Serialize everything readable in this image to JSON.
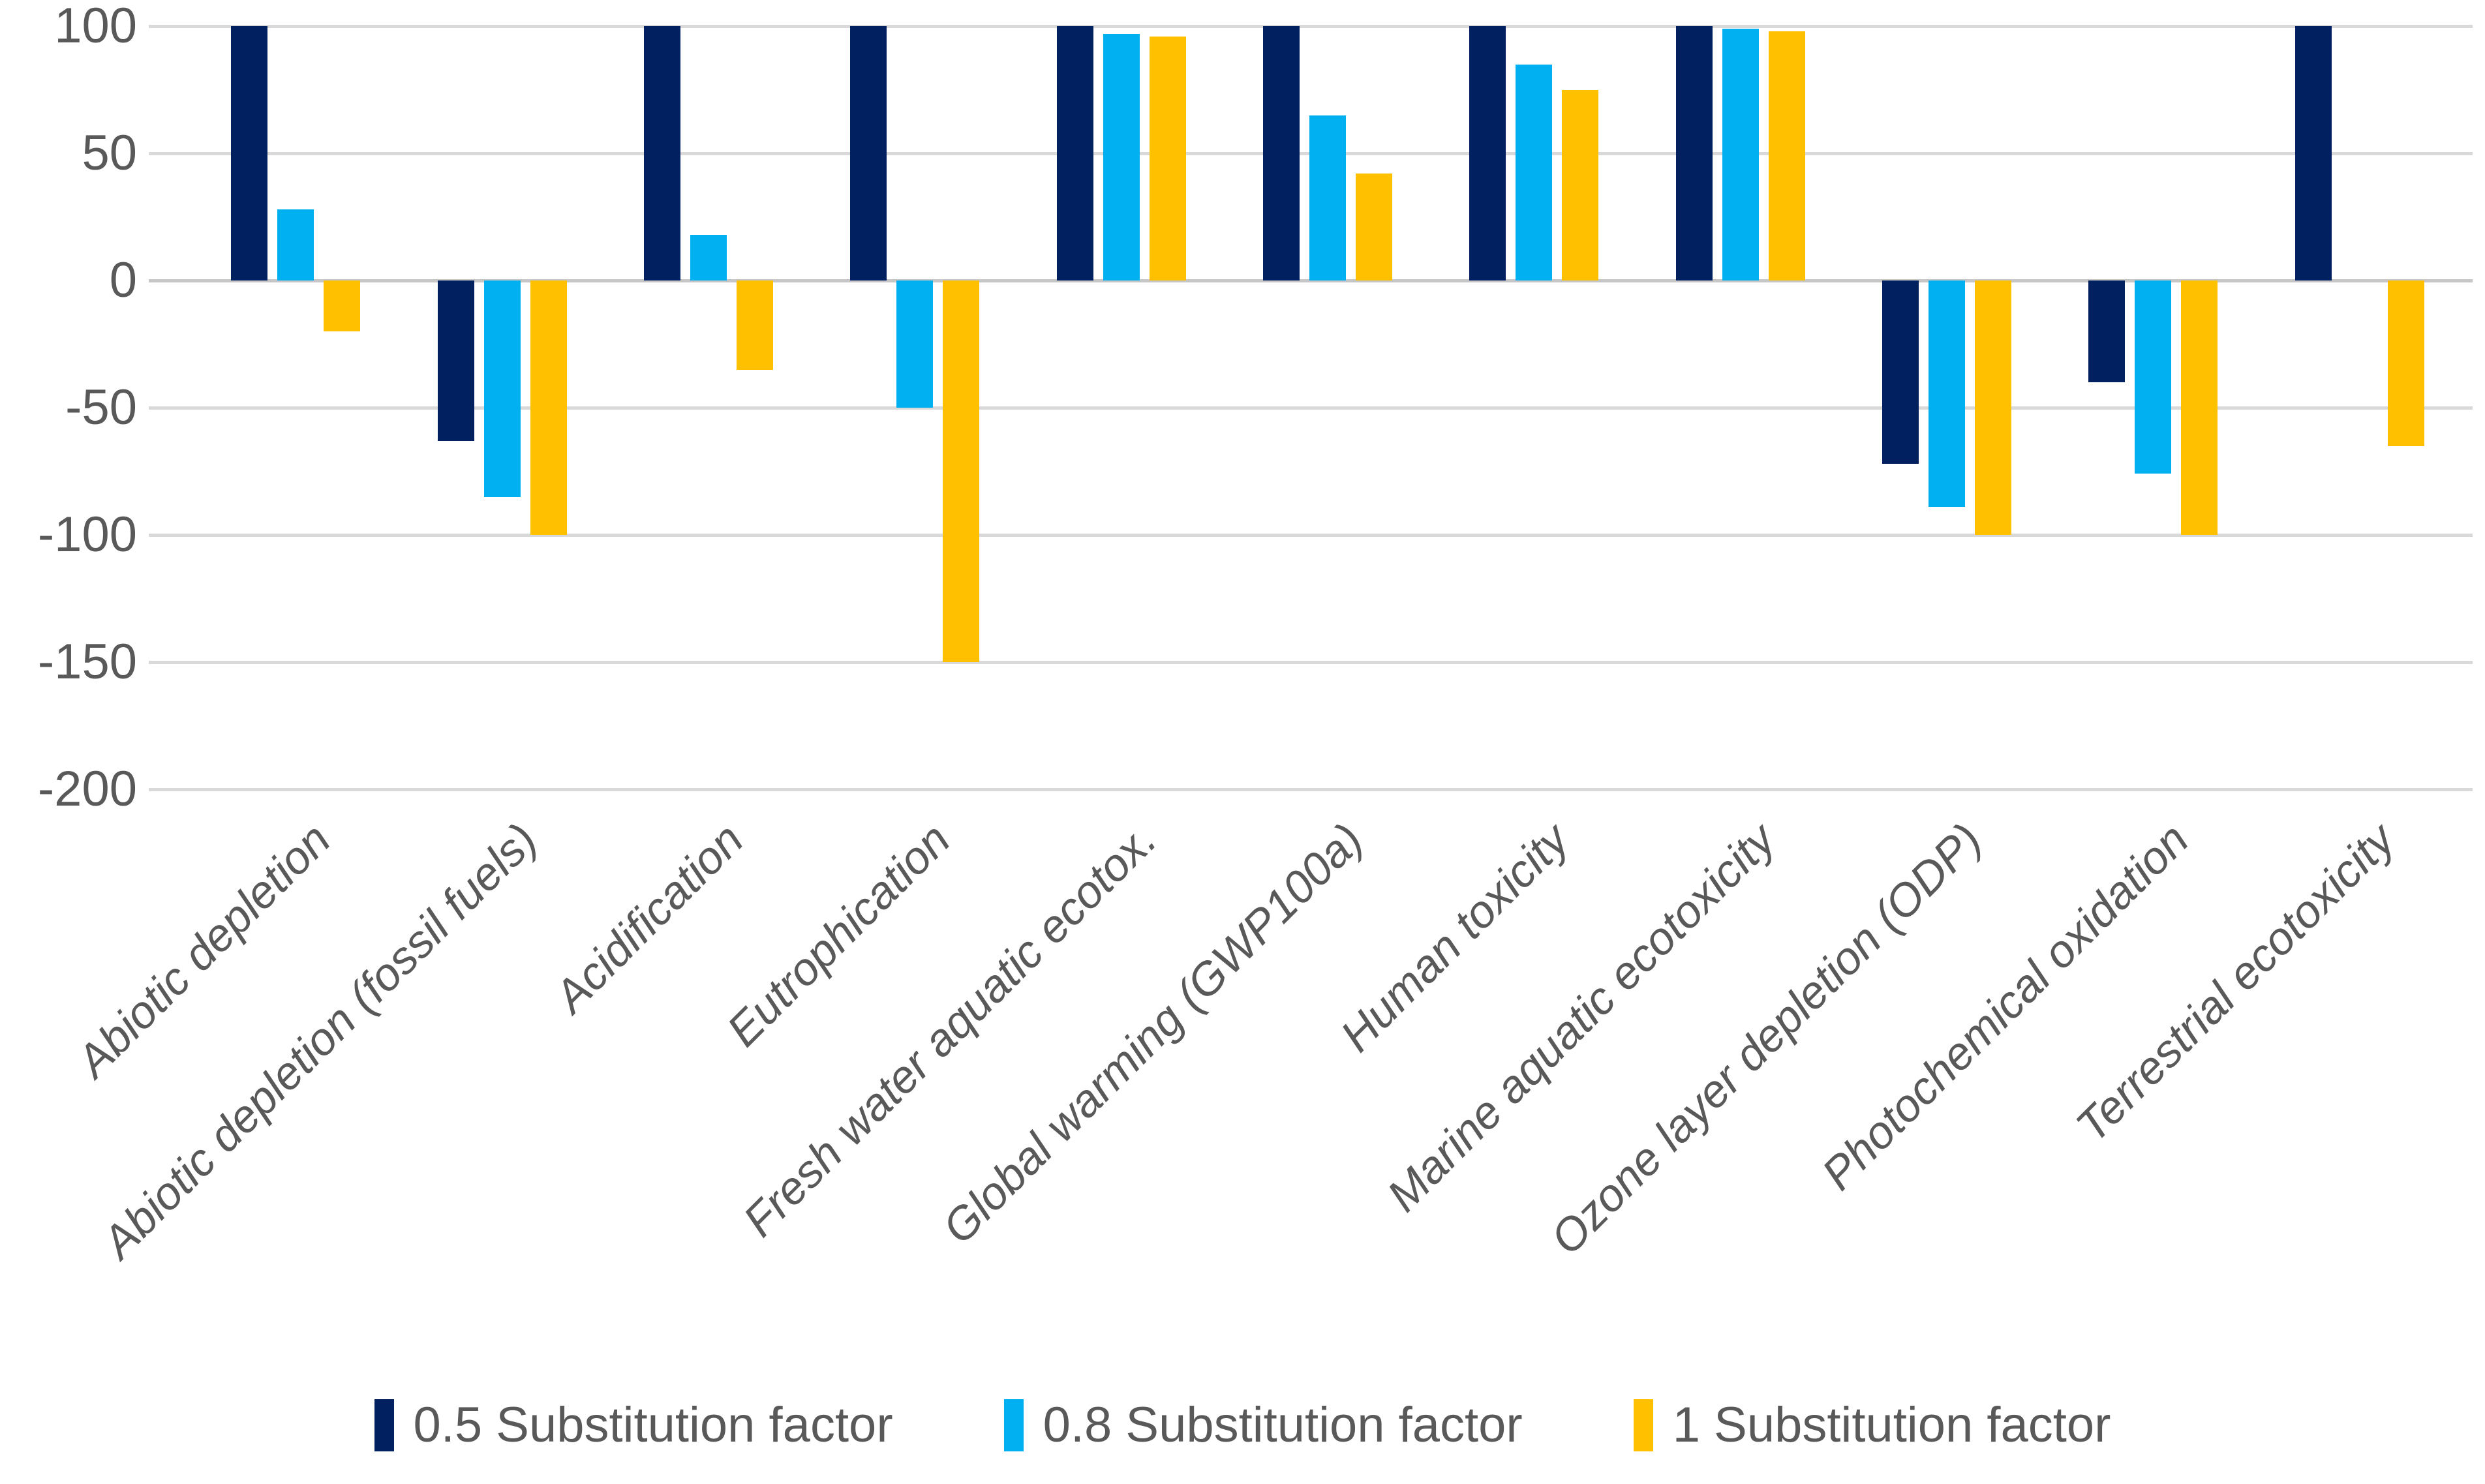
{
  "chart_data": {
    "type": "bar",
    "title": "",
    "xlabel": "",
    "ylabel": "",
    "ylim": [
      -200,
      100
    ],
    "y_ticks": [
      100,
      50,
      0,
      -50,
      -100,
      -150,
      -200
    ],
    "grid": true,
    "legend_position": "bottom",
    "categories": [
      "Abiotic depletion",
      "Abiotic depletion (fossil fuels)",
      "Acidification",
      "Eutrophication",
      "Fresh water aquatic ecotox.",
      "Global warming (GWP100a)",
      "Human toxicity",
      "Marine aquatic ecotoxicity",
      "Ozone layer depletion (ODP)",
      "Photochemical oxidation",
      "Terrestrial ecotoxicity"
    ],
    "series": [
      {
        "name": "0.5 Substitution factor",
        "color": "#002060",
        "values": [
          100,
          -63,
          100,
          100,
          100,
          100,
          100,
          100,
          -72,
          -40,
          100
        ]
      },
      {
        "name": "0.8 Substitution factor",
        "color": "#00b0f0",
        "values": [
          28,
          -85,
          18,
          -50,
          97,
          65,
          85,
          99,
          -89,
          -76,
          0
        ]
      },
      {
        "name": "1 Substitution factor",
        "color": "#ffc000",
        "values": [
          -20,
          -100,
          -35,
          -150,
          96,
          42,
          75,
          98,
          -100,
          -100,
          -65
        ]
      }
    ]
  },
  "colors": {
    "axis_text": "#595959",
    "gridline": "#d9d9d9",
    "zero_line": "#c6c6c6",
    "background": "#ffffff"
  }
}
